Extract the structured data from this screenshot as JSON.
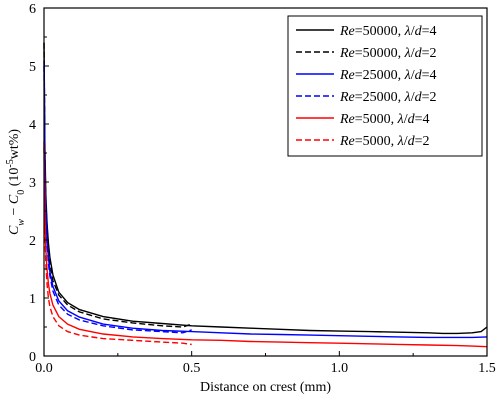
{
  "chart_data": {
    "type": "line",
    "xlabel": "Distance on crest (mm)",
    "ylabel": {
      "parts": [
        {
          "text": "C",
          "italic": true
        },
        {
          "text": "w",
          "italic": true,
          "sub": true
        },
        {
          "text": " − ",
          "italic": false
        },
        {
          "text": "C",
          "italic": true
        },
        {
          "text": "0",
          "italic": false,
          "sub": true
        },
        {
          "text": " (10",
          "italic": false
        },
        {
          "text": "-5",
          "italic": false,
          "sup": true
        },
        {
          "text": "wt%)",
          "italic": false
        }
      ]
    },
    "xlim": [
      0.0,
      1.5
    ],
    "ylim": [
      0,
      6
    ],
    "x_ticks": [
      0.0,
      0.5,
      1.0,
      1.5
    ],
    "x_tick_labels": [
      "0.0",
      "0.5",
      "1.0",
      "1.5"
    ],
    "y_ticks": [
      0,
      1,
      2,
      3,
      4,
      5,
      6
    ],
    "y_tick_labels": [
      "0",
      "1",
      "2",
      "3",
      "4",
      "5",
      "6"
    ],
    "grid": false,
    "legend_position": "top-right",
    "series": [
      {
        "name": "Re=50000, λ/d=4",
        "legend": [
          {
            "text": "Re",
            "italic": true
          },
          {
            "text": "=50000, ",
            "italic": false
          },
          {
            "text": "λ",
            "italic": true
          },
          {
            "text": "/",
            "italic": false
          },
          {
            "text": "d",
            "italic": true
          },
          {
            "text": "=4",
            "italic": false
          }
        ],
        "color": "#000000",
        "dash": "solid",
        "x": [
          0.0,
          0.003,
          0.006,
          0.01,
          0.015,
          0.02,
          0.03,
          0.05,
          0.08,
          0.12,
          0.2,
          0.3,
          0.4,
          0.5,
          0.6,
          0.7,
          0.8,
          0.9,
          1.0,
          1.1,
          1.2,
          1.3,
          1.35,
          1.4,
          1.45,
          1.48,
          1.5
        ],
        "y": [
          5.4,
          3.6,
          2.8,
          2.3,
          1.95,
          1.7,
          1.4,
          1.1,
          0.92,
          0.8,
          0.68,
          0.6,
          0.56,
          0.52,
          0.5,
          0.48,
          0.46,
          0.44,
          0.43,
          0.42,
          0.41,
          0.4,
          0.39,
          0.39,
          0.4,
          0.42,
          0.5
        ]
      },
      {
        "name": "Re=50000, λ/d=2",
        "legend": [
          {
            "text": "Re",
            "italic": true
          },
          {
            "text": "=50000, ",
            "italic": false
          },
          {
            "text": "λ",
            "italic": true
          },
          {
            "text": "/",
            "italic": false
          },
          {
            "text": "d",
            "italic": true
          },
          {
            "text": "=2",
            "italic": false
          }
        ],
        "color": "#000000",
        "dash": "dashed",
        "x": [
          0.0,
          0.003,
          0.006,
          0.01,
          0.015,
          0.02,
          0.03,
          0.05,
          0.08,
          0.12,
          0.2,
          0.3,
          0.4,
          0.47,
          0.5
        ],
        "y": [
          5.4,
          3.5,
          2.7,
          2.2,
          1.85,
          1.6,
          1.3,
          1.05,
          0.88,
          0.76,
          0.64,
          0.57,
          0.52,
          0.5,
          0.55
        ]
      },
      {
        "name": "Re=25000, λ/d=4",
        "legend": [
          {
            "text": "Re",
            "italic": true
          },
          {
            "text": "=25000, ",
            "italic": false
          },
          {
            "text": "λ",
            "italic": true
          },
          {
            "text": "/",
            "italic": false
          },
          {
            "text": "d",
            "italic": true
          },
          {
            "text": "=4",
            "italic": false
          }
        ],
        "color": "#0000ff",
        "dash": "solid",
        "x": [
          0.0,
          0.003,
          0.006,
          0.01,
          0.015,
          0.02,
          0.03,
          0.05,
          0.08,
          0.12,
          0.2,
          0.3,
          0.4,
          0.5,
          0.6,
          0.7,
          0.8,
          0.9,
          1.0,
          1.1,
          1.2,
          1.3,
          1.4,
          1.45,
          1.5
        ],
        "y": [
          5.1,
          3.2,
          2.5,
          2.0,
          1.7,
          1.45,
          1.2,
          0.95,
          0.78,
          0.67,
          0.55,
          0.48,
          0.44,
          0.42,
          0.4,
          0.38,
          0.37,
          0.36,
          0.35,
          0.34,
          0.33,
          0.32,
          0.32,
          0.32,
          0.33
        ]
      },
      {
        "name": "Re=25000, λ/d=2",
        "legend": [
          {
            "text": "Re",
            "italic": true
          },
          {
            "text": "=25000, ",
            "italic": false
          },
          {
            "text": "λ",
            "italic": true
          },
          {
            "text": "/",
            "italic": false
          },
          {
            "text": "d",
            "italic": true
          },
          {
            "text": "=2",
            "italic": false
          }
        ],
        "color": "#0000ff",
        "dash": "dashed",
        "x": [
          0.0,
          0.003,
          0.006,
          0.01,
          0.015,
          0.02,
          0.03,
          0.05,
          0.08,
          0.12,
          0.2,
          0.3,
          0.4,
          0.47,
          0.5
        ],
        "y": [
          5.0,
          3.1,
          2.4,
          1.95,
          1.6,
          1.38,
          1.12,
          0.88,
          0.72,
          0.62,
          0.52,
          0.45,
          0.42,
          0.4,
          0.45
        ]
      },
      {
        "name": "Re=5000, λ/d=4",
        "legend": [
          {
            "text": "Re",
            "italic": true
          },
          {
            "text": "=5000, ",
            "italic": false
          },
          {
            "text": "λ",
            "italic": true
          },
          {
            "text": "/",
            "italic": false
          },
          {
            "text": "d",
            "italic": true
          },
          {
            "text": "=4",
            "italic": false
          }
        ],
        "color": "#ff0000",
        "dash": "solid",
        "x": [
          0.0,
          0.003,
          0.006,
          0.01,
          0.015,
          0.02,
          0.03,
          0.05,
          0.08,
          0.12,
          0.2,
          0.3,
          0.4,
          0.5,
          0.6,
          0.7,
          0.8,
          0.9,
          1.0,
          1.1,
          1.2,
          1.3,
          1.4,
          1.45,
          1.5
        ],
        "y": [
          3.7,
          2.4,
          1.85,
          1.5,
          1.25,
          1.08,
          0.88,
          0.68,
          0.55,
          0.46,
          0.38,
          0.33,
          0.3,
          0.28,
          0.27,
          0.25,
          0.24,
          0.23,
          0.22,
          0.21,
          0.2,
          0.19,
          0.18,
          0.17,
          0.16
        ]
      },
      {
        "name": "Re=5000, λ/d=2",
        "legend": [
          {
            "text": "Re",
            "italic": true
          },
          {
            "text": "=5000, ",
            "italic": false
          },
          {
            "text": "λ",
            "italic": true
          },
          {
            "text": "/",
            "italic": false
          },
          {
            "text": "d",
            "italic": true
          },
          {
            "text": "=2",
            "italic": false
          }
        ],
        "color": "#ff0000",
        "dash": "dashed",
        "x": [
          0.0,
          0.003,
          0.006,
          0.01,
          0.015,
          0.02,
          0.03,
          0.05,
          0.08,
          0.12,
          0.2,
          0.3,
          0.4,
          0.47,
          0.5
        ],
        "y": [
          3.6,
          2.2,
          1.6,
          1.25,
          1.0,
          0.85,
          0.68,
          0.52,
          0.42,
          0.36,
          0.3,
          0.27,
          0.24,
          0.22,
          0.2
        ]
      }
    ]
  }
}
